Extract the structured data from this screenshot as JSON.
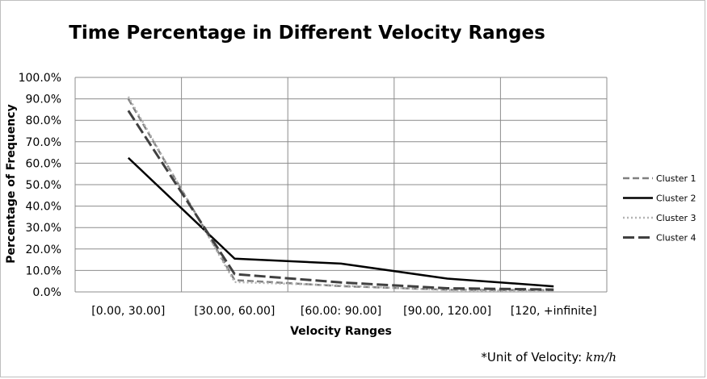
{
  "chart_data": {
    "type": "line",
    "title": "Time Percentage in Different Velocity Ranges",
    "xlabel": "Velocity Ranges",
    "ylabel": "Percentage of Frequency",
    "categories": [
      "[0.00, 30.00]",
      "[30.00, 60.00]",
      "[60.00: 90.00]",
      "[90.00, 120.00]",
      "[120,  +infinite]"
    ],
    "ylim": [
      0,
      100
    ],
    "yticks": [
      "0.0%",
      "10.0%",
      "20.0%",
      "30.0%",
      "40.0%",
      "50.0%",
      "60.0%",
      "70.0%",
      "80.0%",
      "90.0%",
      "100.0%"
    ],
    "grid": true,
    "legend_position": "right",
    "series": [
      {
        "name": "Cluster 1",
        "values": [
          90.0,
          5.5,
          2.7,
          1.0,
          0.8
        ],
        "color": "#808080",
        "dash": "8,4",
        "width": 2.5
      },
      {
        "name": "Cluster 2",
        "values": [
          62.5,
          15.5,
          13.2,
          6.2,
          2.6
        ],
        "color": "#000000",
        "dash": "",
        "width": 2.5
      },
      {
        "name": "Cluster 3",
        "values": [
          91.0,
          4.6,
          3.0,
          0.8,
          0.4
        ],
        "color": "#b3b3b3",
        "dash": "2,3",
        "width": 2.5
      },
      {
        "name": "Cluster 4",
        "values": [
          84.5,
          8.3,
          4.4,
          1.7,
          1.1
        ],
        "color": "#404040",
        "dash": "14,5",
        "width": 3
      }
    ]
  },
  "footnote": {
    "text": "*Unit of Velocity: ",
    "unit": "km/h"
  }
}
